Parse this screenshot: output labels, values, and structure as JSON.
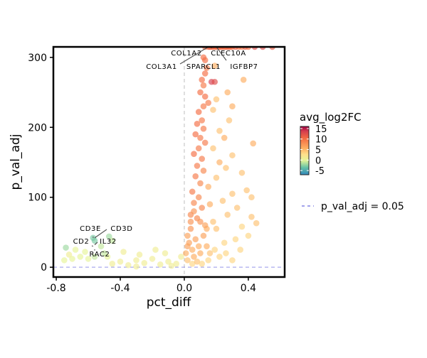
{
  "chart_data": {
    "type": "scatter",
    "xlabel": "pct_diff",
    "ylabel": "p_val_adj",
    "xlim": [
      -0.818,
      0.627
    ],
    "ylim": [
      -14,
      315
    ],
    "xticks": [
      -0.8,
      -0.4,
      0.0,
      0.4
    ],
    "xtick_labels": [
      "-0.8",
      "-0.4",
      "0.0",
      "0.4"
    ],
    "yticks": [
      0,
      100,
      200,
      300
    ],
    "ytick_labels": [
      "0",
      "100",
      "200",
      "300"
    ],
    "vline_x": 0,
    "hline_y": 0.05,
    "color_legend": {
      "title": "avg_log2FC",
      "range": [
        -7,
        16
      ],
      "ticks": [
        15,
        10,
        5,
        0,
        -5
      ],
      "tick_labels": [
        "15",
        "10",
        "5",
        "0",
        "-5"
      ]
    },
    "line_legend": {
      "label": "p_val_adj = 0.05",
      "color": "#6a6ae0"
    },
    "points": [
      [
        0.13,
        315,
        10
      ],
      [
        0.15,
        315,
        10
      ],
      [
        0.16,
        315,
        11
      ],
      [
        0.17,
        315,
        10
      ],
      [
        0.18,
        315,
        10
      ],
      [
        0.19,
        315,
        11
      ],
      [
        0.2,
        315,
        10
      ],
      [
        0.21,
        315,
        10
      ],
      [
        0.22,
        315,
        11
      ],
      [
        0.23,
        315,
        10
      ],
      [
        0.24,
        315,
        10
      ],
      [
        0.25,
        315,
        11
      ],
      [
        0.26,
        315,
        10
      ],
      [
        0.27,
        315,
        10
      ],
      [
        0.28,
        315,
        11
      ],
      [
        0.29,
        315,
        10
      ],
      [
        0.3,
        315,
        10
      ],
      [
        0.32,
        315,
        11
      ],
      [
        0.34,
        315,
        10
      ],
      [
        0.36,
        315,
        9
      ],
      [
        0.38,
        315,
        11
      ],
      [
        0.4,
        315,
        10
      ],
      [
        0.44,
        315,
        12
      ],
      [
        0.49,
        315,
        12
      ],
      [
        0.55,
        315,
        11
      ],
      [
        0.12,
        300,
        10
      ],
      [
        0.13,
        296,
        10
      ],
      [
        0.14,
        285,
        9
      ],
      [
        0.13,
        277,
        10
      ],
      [
        0.11,
        268,
        10
      ],
      [
        0.12,
        260,
        9
      ],
      [
        0.1,
        250,
        10
      ],
      [
        0.13,
        244,
        10
      ],
      [
        0.15,
        235,
        9
      ],
      [
        0.12,
        230,
        9
      ],
      [
        0.09,
        222,
        10
      ],
      [
        0.11,
        210,
        9
      ],
      [
        0.08,
        205,
        10
      ],
      [
        0.12,
        198,
        9
      ],
      [
        0.07,
        190,
        10
      ],
      [
        0.1,
        185,
        9
      ],
      [
        0.13,
        178,
        9
      ],
      [
        0.09,
        170,
        9
      ],
      [
        0.06,
        162,
        10
      ],
      [
        0.11,
        155,
        9
      ],
      [
        0.08,
        145,
        9
      ],
      [
        0.12,
        138,
        8
      ],
      [
        0.07,
        130,
        9
      ],
      [
        0.1,
        120,
        8
      ],
      [
        0.05,
        108,
        9
      ],
      [
        0.09,
        100,
        8
      ],
      [
        0.06,
        92,
        8
      ],
      [
        0.11,
        85,
        8
      ],
      [
        0.04,
        75,
        8
      ],
      [
        0.08,
        70,
        8
      ],
      [
        0.17,
        265,
        13
      ],
      [
        0.19,
        265,
        12
      ],
      [
        0.37,
        268,
        5
      ],
      [
        0.19,
        288,
        5
      ],
      [
        0.27,
        250,
        5
      ],
      [
        0.2,
        240,
        4
      ],
      [
        0.3,
        230,
        5
      ],
      [
        0.18,
        225,
        4
      ],
      [
        0.28,
        210,
        4
      ],
      [
        0.22,
        195,
        4
      ],
      [
        0.25,
        185,
        5
      ],
      [
        0.43,
        177,
        5
      ],
      [
        0.18,
        170,
        4
      ],
      [
        0.3,
        160,
        4
      ],
      [
        0.22,
        150,
        5
      ],
      [
        0.26,
        142,
        4
      ],
      [
        0.36,
        135,
        4
      ],
      [
        0.2,
        128,
        4
      ],
      [
        0.39,
        110,
        4
      ],
      [
        0.3,
        105,
        4
      ],
      [
        0.42,
        100,
        4
      ],
      [
        0.24,
        95,
        4
      ],
      [
        0.33,
        85,
        4
      ],
      [
        0.42,
        72,
        4
      ],
      [
        0.45,
        63,
        4
      ],
      [
        0.27,
        75,
        4
      ],
      [
        0.36,
        58,
        3
      ],
      [
        0.4,
        45,
        3
      ],
      [
        0.32,
        40,
        3
      ],
      [
        0.25,
        35,
        3
      ],
      [
        0.2,
        55,
        4
      ],
      [
        0.15,
        115,
        5
      ],
      [
        0.16,
        90,
        5
      ],
      [
        0.18,
        65,
        4
      ],
      [
        0.14,
        55,
        5
      ],
      [
        0.02,
        45,
        6
      ],
      [
        0.03,
        35,
        6
      ],
      [
        0.05,
        25,
        5
      ],
      [
        0.07,
        40,
        6
      ],
      [
        0.04,
        55,
        7
      ],
      [
        0.06,
        15,
        5
      ],
      [
        0.09,
        30,
        5
      ],
      [
        0.1,
        20,
        5
      ],
      [
        0.12,
        45,
        6
      ],
      [
        0.14,
        30,
        5
      ],
      [
        0.16,
        20,
        4
      ],
      [
        0.01,
        20,
        5
      ],
      [
        0.02,
        10,
        4
      ],
      [
        0.05,
        5,
        3
      ],
      [
        0.08,
        8,
        4
      ],
      [
        0.11,
        5,
        3
      ],
      [
        0.15,
        10,
        3
      ],
      [
        0.19,
        25,
        3
      ],
      [
        0.22,
        15,
        3
      ],
      [
        0.26,
        20,
        3
      ],
      [
        0.3,
        10,
        3
      ],
      [
        0.35,
        25,
        3
      ],
      [
        0.04,
        65,
        7
      ],
      [
        0.06,
        80,
        7
      ],
      [
        0.02,
        30,
        6
      ],
      [
        0.13,
        60,
        6
      ],
      [
        0.1,
        65,
        7
      ],
      [
        -0.45,
        5,
        1
      ],
      [
        -0.4,
        8,
        1
      ],
      [
        -0.35,
        3,
        1
      ],
      [
        -0.3,
        10,
        1
      ],
      [
        -0.25,
        6,
        1
      ],
      [
        -0.2,
        12,
        1
      ],
      [
        -0.15,
        4,
        1
      ],
      [
        -0.1,
        8,
        1
      ],
      [
        -0.05,
        5,
        1
      ],
      [
        -0.02,
        15,
        1
      ],
      [
        -0.12,
        20,
        1
      ],
      [
        -0.18,
        25,
        1
      ],
      [
        -0.28,
        18,
        1
      ],
      [
        -0.38,
        22,
        1
      ],
      [
        -0.48,
        15,
        0
      ],
      [
        -0.08,
        2,
        1
      ],
      [
        -0.3,
        1,
        1
      ],
      [
        -0.6,
        12,
        0
      ],
      [
        -0.65,
        15,
        0
      ],
      [
        -0.7,
        12,
        0
      ],
      [
        -0.75,
        10,
        0
      ],
      [
        -0.72,
        18,
        1
      ],
      [
        -0.74,
        28,
        -2
      ],
      [
        -0.57,
        42,
        -3
      ],
      [
        -0.56,
        38,
        -3
      ],
      [
        -0.47,
        44,
        -2
      ],
      [
        -0.45,
        38,
        -1
      ],
      [
        -0.52,
        30,
        -1
      ],
      [
        -0.62,
        22,
        0
      ],
      [
        -0.68,
        25,
        0
      ],
      [
        -0.56,
        15,
        -1
      ],
      [
        -0.5,
        20,
        -1
      ]
    ],
    "labels": [
      {
        "gene": "COL1A2",
        "x": 0.14,
        "y": 315
      },
      {
        "gene": "CLEC10A",
        "x": 0.16,
        "y": 315
      },
      {
        "gene": "COL3A1",
        "x": 0.15,
        "y": 315
      },
      {
        "gene": "SPARCL1",
        "x": 0.17,
        "y": 315
      },
      {
        "gene": "IGFBP7",
        "x": 0.2,
        "y": 315
      },
      {
        "gene": "CD3E",
        "x": -0.57,
        "y": 42
      },
      {
        "gene": "CD3D",
        "x": -0.56,
        "y": 42
      },
      {
        "gene": "CD2",
        "x": -0.57,
        "y": 30
      },
      {
        "gene": "IL32",
        "x": -0.56,
        "y": 32
      },
      {
        "gene": "RAC2",
        "x": -0.56,
        "y": 24
      }
    ]
  }
}
